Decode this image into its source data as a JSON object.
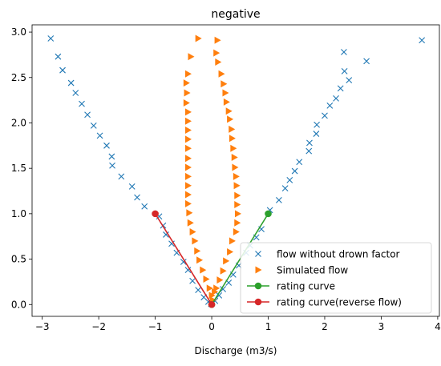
{
  "chart_data": {
    "type": "scatter",
    "title": "negative",
    "xlabel": "Discharge (m3/s)",
    "ylabel": "",
    "xlim": [
      -3.18,
      4.03
    ],
    "ylim": [
      -0.13,
      3.08
    ],
    "xticks": [
      -3,
      -2,
      -1,
      0,
      1,
      2,
      3,
      4
    ],
    "xtick_labels": [
      "−3",
      "−2",
      "−1",
      "0",
      "1",
      "2",
      "3",
      "4"
    ],
    "yticks": [
      0.0,
      0.5,
      1.0,
      1.5,
      2.0,
      2.5,
      3.0
    ],
    "ytick_labels": [
      "0.0",
      "0.5",
      "1.0",
      "1.5",
      "2.0",
      "2.5",
      "3.0"
    ],
    "grid": false,
    "legend_position": "lower right",
    "series": [
      {
        "name": "flow without drown factor",
        "marker": "x",
        "color": "#1f77b4",
        "points": [
          [
            -2.85,
            2.93
          ],
          [
            -2.72,
            2.73
          ],
          [
            -2.64,
            2.58
          ],
          [
            -2.49,
            2.44
          ],
          [
            -2.41,
            2.33
          ],
          [
            -2.3,
            2.21
          ],
          [
            -2.2,
            2.09
          ],
          [
            -2.09,
            1.97
          ],
          [
            -1.98,
            1.86
          ],
          [
            -1.86,
            1.75
          ],
          [
            -1.77,
            1.63
          ],
          [
            -1.76,
            1.53
          ],
          [
            -1.6,
            1.41
          ],
          [
            -1.41,
            1.3
          ],
          [
            -1.32,
            1.18
          ],
          [
            -1.19,
            1.08
          ],
          [
            -0.93,
            0.97
          ],
          [
            -0.86,
            0.87
          ],
          [
            -0.81,
            0.77
          ],
          [
            -0.71,
            0.67
          ],
          [
            -0.62,
            0.57
          ],
          [
            -0.5,
            0.47
          ],
          [
            -0.42,
            0.38
          ],
          [
            -0.34,
            0.26
          ],
          [
            -0.24,
            0.16
          ],
          [
            -0.14,
            0.08
          ],
          [
            -0.06,
            0.03
          ],
          [
            -0.01,
            0.005
          ],
          [
            0.06,
            0.04
          ],
          [
            0.13,
            0.1
          ],
          [
            0.2,
            0.17
          ],
          [
            0.3,
            0.24
          ],
          [
            0.38,
            0.33
          ],
          [
            0.48,
            0.43
          ],
          [
            0.61,
            0.57
          ],
          [
            0.68,
            0.65
          ],
          [
            0.79,
            0.74
          ],
          [
            0.88,
            0.83
          ],
          [
            1.03,
            1.04
          ],
          [
            1.19,
            1.15
          ],
          [
            1.3,
            1.28
          ],
          [
            1.38,
            1.37
          ],
          [
            1.47,
            1.47
          ],
          [
            1.55,
            1.57
          ],
          [
            1.72,
            1.69
          ],
          [
            1.73,
            1.78
          ],
          [
            1.85,
            1.88
          ],
          [
            1.86,
            1.98
          ],
          [
            2.0,
            2.08
          ],
          [
            2.09,
            2.19
          ],
          [
            2.2,
            2.27
          ],
          [
            2.28,
            2.38
          ],
          [
            2.35,
            2.57
          ],
          [
            2.43,
            2.47
          ],
          [
            2.34,
            2.78
          ],
          [
            2.74,
            2.68
          ],
          [
            3.72,
            2.91
          ]
        ]
      },
      {
        "name": "Simulated flow",
        "marker": "triangle-right",
        "color": "#ff7f0e",
        "points": [
          [
            -0.24,
            2.93
          ],
          [
            -0.37,
            2.73
          ],
          [
            -0.42,
            2.54
          ],
          [
            -0.45,
            2.44
          ],
          [
            -0.44,
            2.33
          ],
          [
            -0.45,
            2.22
          ],
          [
            -0.42,
            2.12
          ],
          [
            -0.42,
            2.02
          ],
          [
            -0.42,
            1.92
          ],
          [
            -0.42,
            1.82
          ],
          [
            -0.42,
            1.72
          ],
          [
            -0.42,
            1.61
          ],
          [
            -0.42,
            1.51
          ],
          [
            -0.42,
            1.41
          ],
          [
            -0.42,
            1.31
          ],
          [
            -0.42,
            1.21
          ],
          [
            -0.42,
            1.11
          ],
          [
            -0.4,
            1.01
          ],
          [
            -0.38,
            0.9
          ],
          [
            -0.34,
            0.8
          ],
          [
            -0.3,
            0.7
          ],
          [
            -0.26,
            0.59
          ],
          [
            -0.22,
            0.49
          ],
          [
            -0.16,
            0.38
          ],
          [
            -0.1,
            0.28
          ],
          [
            -0.04,
            0.18
          ],
          [
            0.0,
            0.1
          ],
          [
            0.02,
            0.05
          ],
          [
            0.05,
            0.14
          ],
          [
            0.1,
            2.91
          ],
          [
            0.08,
            2.77
          ],
          [
            0.11,
            2.67
          ],
          [
            0.17,
            2.54
          ],
          [
            0.21,
            2.43
          ],
          [
            0.24,
            2.33
          ],
          [
            0.26,
            2.23
          ],
          [
            0.3,
            2.13
          ],
          [
            0.32,
            2.04
          ],
          [
            0.35,
            1.93
          ],
          [
            0.36,
            1.83
          ],
          [
            0.38,
            1.72
          ],
          [
            0.4,
            1.62
          ],
          [
            0.41,
            1.51
          ],
          [
            0.43,
            1.41
          ],
          [
            0.44,
            1.31
          ],
          [
            0.45,
            1.2
          ],
          [
            0.45,
            1.1
          ],
          [
            0.46,
            1.0
          ],
          [
            0.45,
            0.9
          ],
          [
            0.43,
            0.8
          ],
          [
            0.36,
            0.7
          ],
          [
            0.32,
            0.58
          ],
          [
            0.25,
            0.48
          ],
          [
            0.2,
            0.37
          ],
          [
            0.14,
            0.27
          ],
          [
            0.08,
            0.18
          ]
        ]
      },
      {
        "name": "rating curve",
        "marker": "o-line",
        "color": "#2ca02c",
        "points": [
          [
            0.0,
            0.0
          ],
          [
            1.0,
            1.0
          ]
        ]
      },
      {
        "name": "rating curve(reverse flow)",
        "marker": "o-line",
        "color": "#d62728",
        "points": [
          [
            0.0,
            0.0
          ],
          [
            -1.0,
            1.0
          ]
        ]
      }
    ]
  }
}
